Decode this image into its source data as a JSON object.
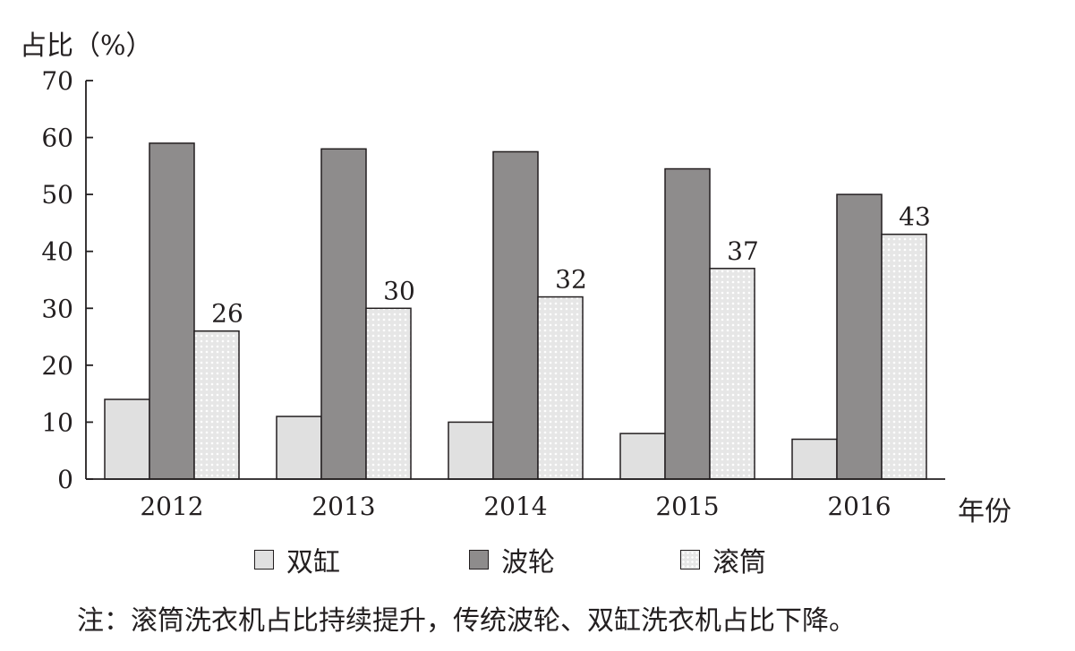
{
  "chart_data": {
    "type": "bar",
    "categories": [
      "2012",
      "2013",
      "2014",
      "2015",
      "2016"
    ],
    "series": [
      {
        "name": "双缸",
        "values": [
          14,
          11,
          10,
          8,
          7
        ],
        "color": "#e0e0e0"
      },
      {
        "name": "波轮",
        "values": [
          59,
          58,
          57.5,
          54.5,
          50
        ],
        "color": "#8e8c8c"
      },
      {
        "name": "滚筒",
        "values": [
          26,
          30,
          32,
          37,
          43
        ],
        "color": "#e6e6e6",
        "pattern": "dotted",
        "data_labels": [
          "26",
          "30",
          "32",
          "37",
          "43"
        ]
      }
    ],
    "ylabel": "占比（%）",
    "xlabel": "年份",
    "ylim": [
      0,
      70
    ],
    "yticks": [
      "0",
      "10",
      "20",
      "30",
      "40",
      "50",
      "60",
      "70"
    ],
    "grid": false,
    "legend_position": "bottom",
    "note": "注：滚筒洗衣机占比持续提升，传统波轮、双缸洗衣机占比下降。"
  }
}
